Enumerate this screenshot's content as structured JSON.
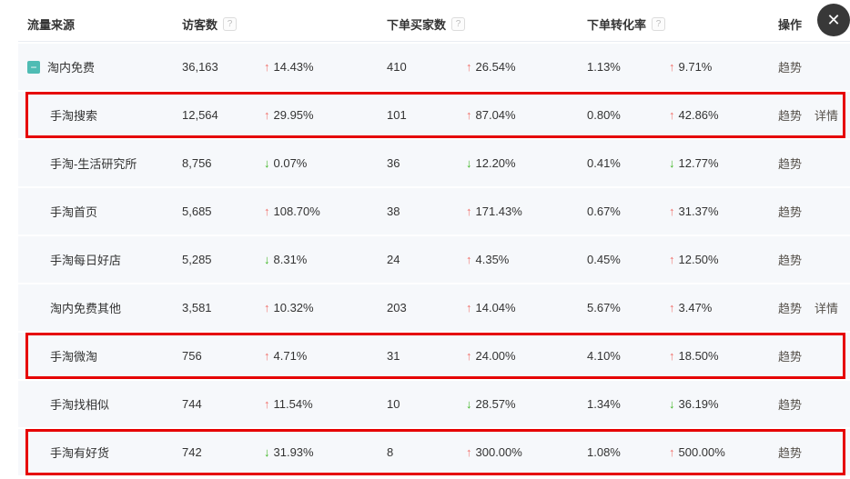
{
  "glyphs": {
    "collapse": "−",
    "help": "?",
    "close": "✕"
  },
  "colors": {
    "up": "#f0716b",
    "down": "#3cb521",
    "highlight": "#e60000",
    "row_bg": "#f6f8fb",
    "toggle_bg": "#4fbcb4",
    "link": "#55504a",
    "header_text": "#333333",
    "value_text": "#333333",
    "close_bg": "#383838"
  },
  "table": {
    "columns": [
      {
        "label": "流量来源",
        "help": false
      },
      {
        "label": "访客数",
        "help": true
      },
      {
        "label": "下单买家数",
        "help": true
      },
      {
        "label": "下单转化率",
        "help": true
      },
      {
        "label": "操作",
        "help": false
      }
    ],
    "rows": [
      {
        "source": "淘内免费",
        "is_child": false,
        "has_toggle": true,
        "highlighted": false,
        "visitors": "36,163",
        "v_change": {
          "dir": "up",
          "arrow": "↑",
          "value": "14.43%"
        },
        "buyers": "410",
        "b_change": {
          "dir": "up",
          "arrow": "↑",
          "value": "26.54%"
        },
        "conversion": "1.13%",
        "c_change": {
          "dir": "up",
          "arrow": "↑",
          "value": "9.71%"
        },
        "actions": {
          "trend": "趋势",
          "detail": ""
        }
      },
      {
        "source": "手淘搜索",
        "is_child": true,
        "has_toggle": false,
        "highlighted": true,
        "visitors": "12,564",
        "v_change": {
          "dir": "up",
          "arrow": "↑",
          "value": "29.95%"
        },
        "buyers": "101",
        "b_change": {
          "dir": "up",
          "arrow": "↑",
          "value": "87.04%"
        },
        "conversion": "0.80%",
        "c_change": {
          "dir": "up",
          "arrow": "↑",
          "value": "42.86%"
        },
        "actions": {
          "trend": "趋势",
          "detail": "详情"
        }
      },
      {
        "source": "手淘-生活研究所",
        "is_child": true,
        "has_toggle": false,
        "highlighted": false,
        "visitors": "8,756",
        "v_change": {
          "dir": "down",
          "arrow": "↓",
          "value": "0.07%"
        },
        "buyers": "36",
        "b_change": {
          "dir": "down",
          "arrow": "↓",
          "value": "12.20%"
        },
        "conversion": "0.41%",
        "c_change": {
          "dir": "down",
          "arrow": "↓",
          "value": "12.77%"
        },
        "actions": {
          "trend": "趋势",
          "detail": ""
        }
      },
      {
        "source": "手淘首页",
        "is_child": true,
        "has_toggle": false,
        "highlighted": false,
        "visitors": "5,685",
        "v_change": {
          "dir": "up",
          "arrow": "↑",
          "value": "108.70%"
        },
        "buyers": "38",
        "b_change": {
          "dir": "up",
          "arrow": "↑",
          "value": "171.43%"
        },
        "conversion": "0.67%",
        "c_change": {
          "dir": "up",
          "arrow": "↑",
          "value": "31.37%"
        },
        "actions": {
          "trend": "趋势",
          "detail": ""
        }
      },
      {
        "source": "手淘每日好店",
        "is_child": true,
        "has_toggle": false,
        "highlighted": false,
        "visitors": "5,285",
        "v_change": {
          "dir": "down",
          "arrow": "↓",
          "value": "8.31%"
        },
        "buyers": "24",
        "b_change": {
          "dir": "up",
          "arrow": "↑",
          "value": "4.35%"
        },
        "conversion": "0.45%",
        "c_change": {
          "dir": "up",
          "arrow": "↑",
          "value": "12.50%"
        },
        "actions": {
          "trend": "趋势",
          "detail": ""
        }
      },
      {
        "source": "淘内免费其他",
        "is_child": true,
        "has_toggle": false,
        "highlighted": false,
        "visitors": "3,581",
        "v_change": {
          "dir": "up",
          "arrow": "↑",
          "value": "10.32%"
        },
        "buyers": "203",
        "b_change": {
          "dir": "up",
          "arrow": "↑",
          "value": "14.04%"
        },
        "conversion": "5.67%",
        "c_change": {
          "dir": "up",
          "arrow": "↑",
          "value": "3.47%"
        },
        "actions": {
          "trend": "趋势",
          "detail": "详情"
        }
      },
      {
        "source": "手淘微淘",
        "is_child": true,
        "has_toggle": false,
        "highlighted": true,
        "visitors": "756",
        "v_change": {
          "dir": "up",
          "arrow": "↑",
          "value": "4.71%"
        },
        "buyers": "31",
        "b_change": {
          "dir": "up",
          "arrow": "↑",
          "value": "24.00%"
        },
        "conversion": "4.10%",
        "c_change": {
          "dir": "up",
          "arrow": "↑",
          "value": "18.50%"
        },
        "actions": {
          "trend": "趋势",
          "detail": ""
        }
      },
      {
        "source": "手淘找相似",
        "is_child": true,
        "has_toggle": false,
        "highlighted": false,
        "visitors": "744",
        "v_change": {
          "dir": "up",
          "arrow": "↑",
          "value": "11.54%"
        },
        "buyers": "10",
        "b_change": {
          "dir": "down",
          "arrow": "↓",
          "value": "28.57%"
        },
        "conversion": "1.34%",
        "c_change": {
          "dir": "down",
          "arrow": "↓",
          "value": "36.19%"
        },
        "actions": {
          "trend": "趋势",
          "detail": ""
        }
      },
      {
        "source": "手淘有好货",
        "is_child": true,
        "has_toggle": false,
        "highlighted": true,
        "visitors": "742",
        "v_change": {
          "dir": "down",
          "arrow": "↓",
          "value": "31.93%"
        },
        "buyers": "8",
        "b_change": {
          "dir": "up",
          "arrow": "↑",
          "value": "300.00%"
        },
        "conversion": "1.08%",
        "c_change": {
          "dir": "up",
          "arrow": "↑",
          "value": "500.00%"
        },
        "actions": {
          "trend": "趋势",
          "detail": ""
        }
      }
    ]
  }
}
